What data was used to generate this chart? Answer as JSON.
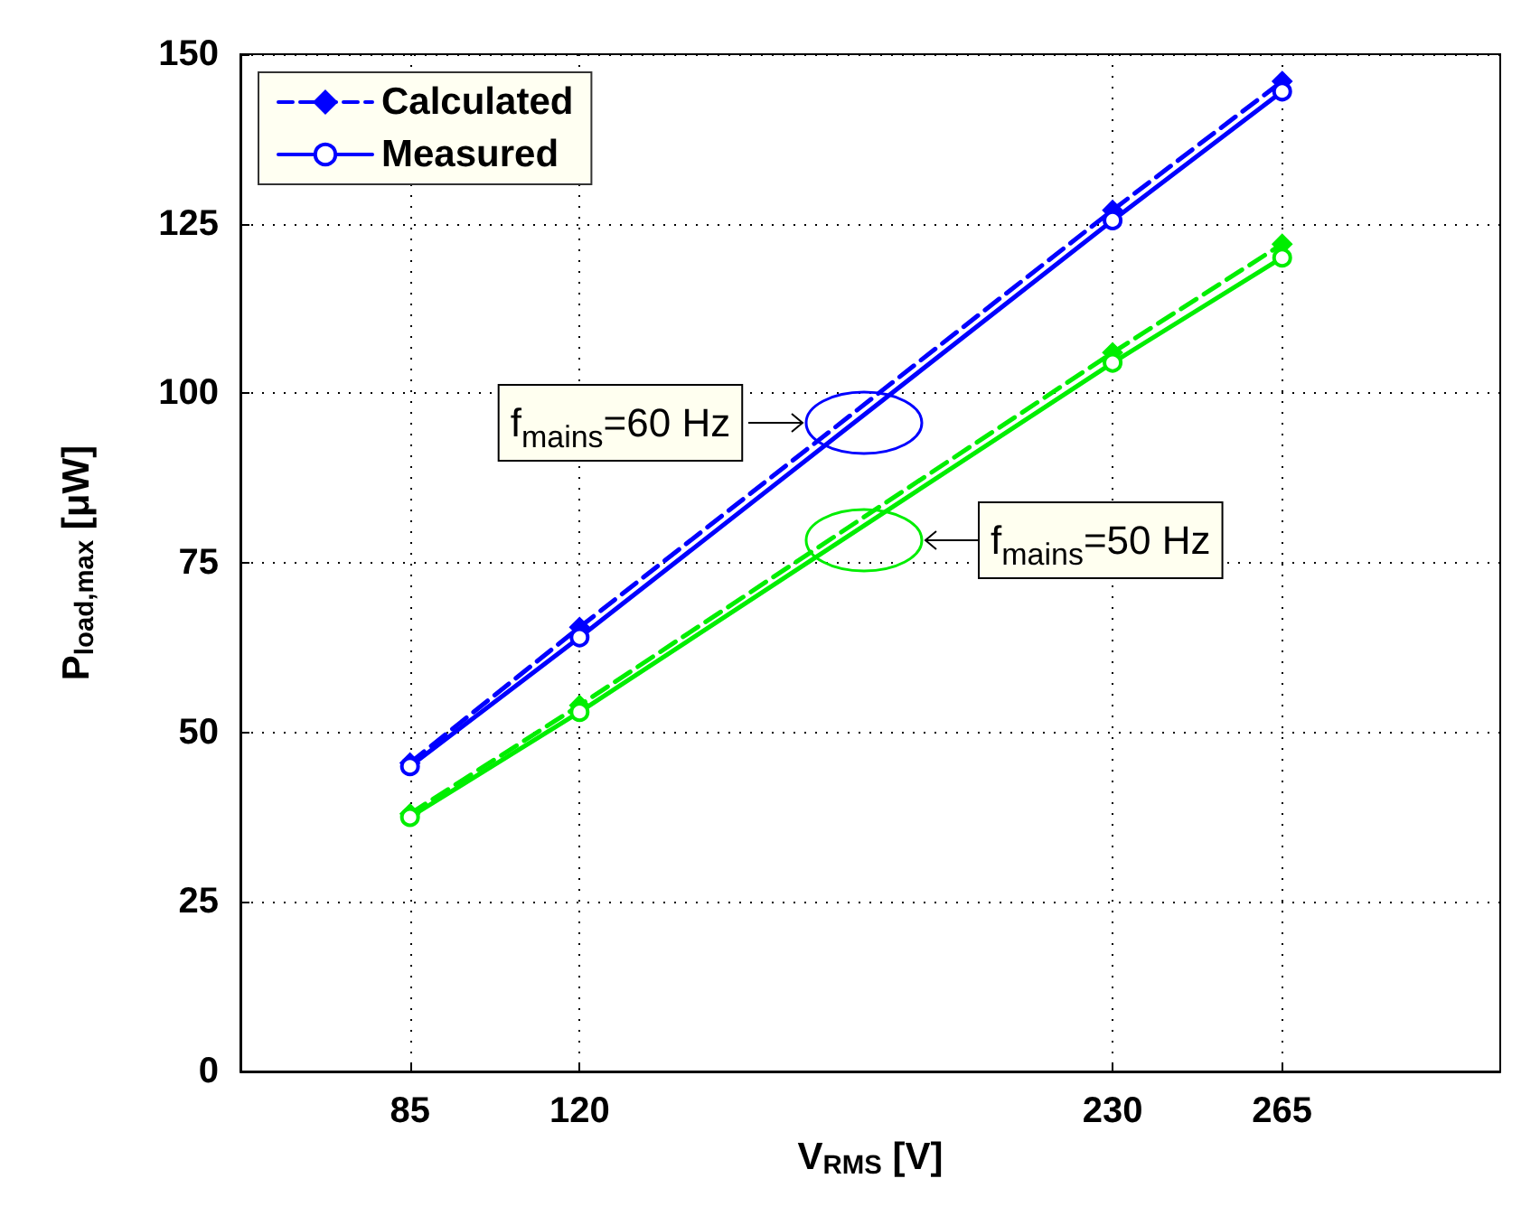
{
  "chart_data": {
    "type": "line",
    "xlabel": "V$_{RMS}$ [V]",
    "ylabel": "P$_{load,max}$ [μW]",
    "x": [
      85,
      120,
      230,
      265
    ],
    "series": [
      {
        "name": "Calculated",
        "color": "#0000ff",
        "values": [
          45.5,
          65.5,
          127,
          146
        ],
        "marker": "diamond",
        "line_style": "dashed"
      },
      {
        "name": "Measured",
        "color": "#0000ff",
        "values": [
          45,
          64,
          125.5,
          144.5
        ],
        "marker": "circle",
        "line_style": "solid"
      },
      {
        "color": "#00ee00",
        "values": [
          38,
          54,
          106,
          122
        ],
        "marker": "diamond",
        "line_style": "dashed"
      },
      {
        "color": "#00ee00",
        "values": [
          37.5,
          53,
          104.5,
          120
        ],
        "marker": "circle",
        "line_style": "solid"
      }
    ],
    "xlim": [
      50,
      310
    ],
    "xticks": [
      85,
      120,
      230,
      265
    ],
    "ylim": [
      0,
      150
    ],
    "yticks": [
      0,
      25,
      50,
      75,
      100,
      125,
      150
    ],
    "grid": true,
    "legend": "top left",
    "annotations": [
      "f$_{mains}$=60 Hz",
      "f$_{mains}$=50 Hz"
    ]
  }
}
